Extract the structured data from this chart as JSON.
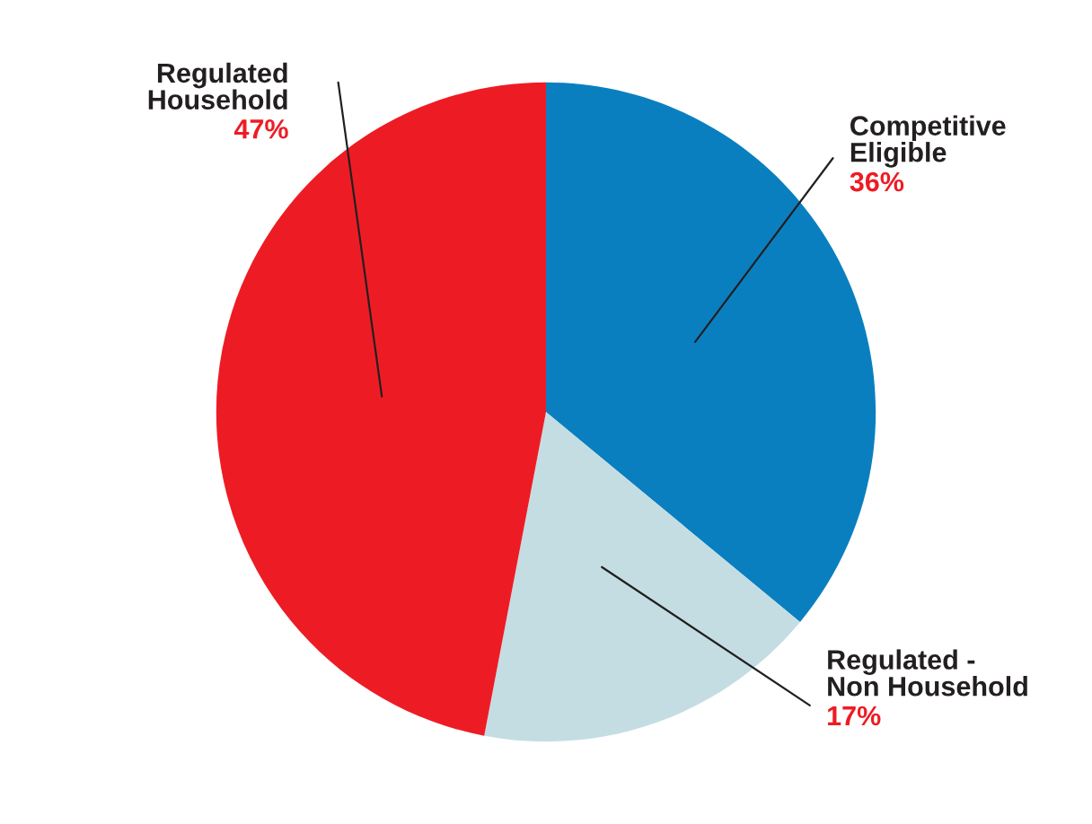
{
  "chart_data": {
    "type": "pie",
    "categories": [
      "Competitive\nEligible",
      "Regulated -\nNon Household",
      "Regulated\nHousehold"
    ],
    "values": [
      36,
      17,
      47
    ],
    "colors": [
      "#0a7fc0",
      "#c4dde3",
      "#ed1c24"
    ],
    "value_labels": [
      "36%",
      "17%",
      "47%"
    ],
    "legend": false
  }
}
